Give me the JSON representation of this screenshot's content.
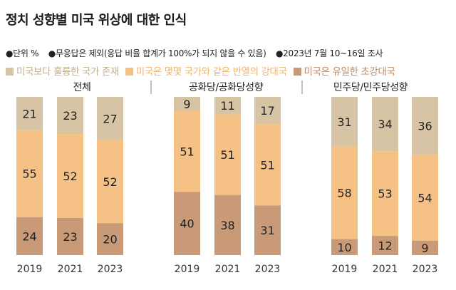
{
  "title": "정치 성향별 미국 위상에 대한 인식",
  "notes": [
    "●단위 %",
    "●무응답은 제외(응답 비율 합계가 100%가 되지 않을 수 있음)",
    "●2023년 7월 10~16일 조사"
  ],
  "colors": {
    "top": "#d6c4a4",
    "middle": "#f5c184",
    "bottom": "#c89a78",
    "divider": "#aaaaaa"
  },
  "legend": [
    {
      "label": "미국보다 훌륭한 국가 존재",
      "color": "#d6c4a4",
      "text_color": "#c2ae8c"
    },
    {
      "label": "미국은 몇몇 국가와 같은 반열의 강대국",
      "color": "#f5c184",
      "text_color": "#efb46f"
    },
    {
      "label": "미국은 유일한 초강대국",
      "color": "#c89a78",
      "text_color": "#b9896a"
    }
  ],
  "chart_data": {
    "type": "bar",
    "stacked": true,
    "segments": [
      "미국보다 훌륭한 국가 존재",
      "미국은 몇몇 국가와 같은 반열의 강대국",
      "미국은 유일한 초강대국"
    ],
    "groups": [
      {
        "name": "전체",
        "categories": [
          "2019",
          "2021",
          "2023"
        ],
        "series": [
          {
            "name": "미국보다 훌륭한 국가 존재",
            "values": [
              21,
              23,
              27
            ]
          },
          {
            "name": "미국은 몇몇 국가와 같은 반열의 강대국",
            "values": [
              55,
              52,
              52
            ]
          },
          {
            "name": "미국은 유일한 초강대국",
            "values": [
              24,
              23,
              20
            ]
          }
        ]
      },
      {
        "name": "공화당/공화당성향",
        "categories": [
          "2019",
          "2021",
          "2023"
        ],
        "series": [
          {
            "name": "미국보다 훌륭한 국가 존재",
            "values": [
              9,
              11,
              17
            ]
          },
          {
            "name": "미국은 몇몇 국가와 같은 반열의 강대국",
            "values": [
              51,
              51,
              51
            ]
          },
          {
            "name": "미국은 유일한 초강대국",
            "values": [
              40,
              38,
              31
            ]
          }
        ]
      },
      {
        "name": "민주당/민주당성향",
        "categories": [
          "2019",
          "2021",
          "2023"
        ],
        "series": [
          {
            "name": "미국보다 훌륭한 국가 존재",
            "values": [
              31,
              34,
              36
            ]
          },
          {
            "name": "미국은 몇몇 국가와 같은 반열의 강대국",
            "values": [
              58,
              53,
              54
            ]
          },
          {
            "name": "미국은 유일한 초강대국",
            "values": [
              10,
              12,
              9
            ]
          }
        ]
      }
    ]
  }
}
